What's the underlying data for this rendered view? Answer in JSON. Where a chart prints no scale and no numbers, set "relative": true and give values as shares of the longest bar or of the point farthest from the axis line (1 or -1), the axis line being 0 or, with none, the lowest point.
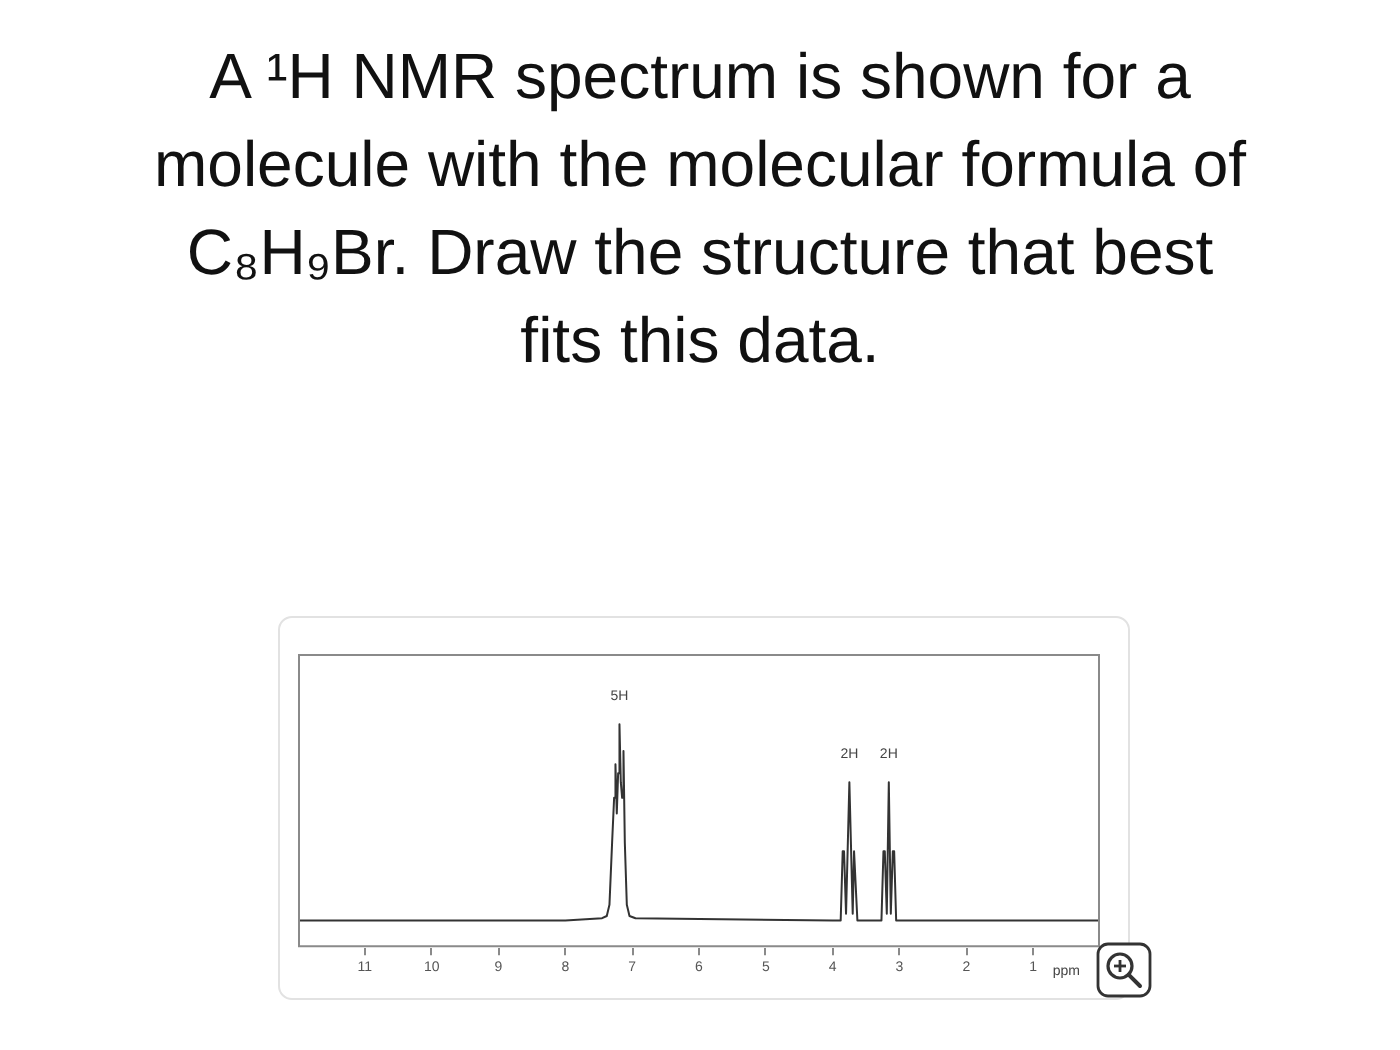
{
  "chart_data": {
    "type": "line",
    "title": "A ¹H NMR spectrum is shown for a molecule with the molecular formula of C₈H₉Br. Draw the structure that best fits this data.",
    "xlabel": "ppm",
    "relative": true,
    "color": "#333333",
    "marker": "none",
    "x": [
      12,
      8.0,
      7.45,
      7.38,
      7.34,
      7.3,
      7.27,
      7.25,
      7.23,
      7.21,
      7.19,
      7.17,
      7.15,
      7.13,
      7.11,
      7.08,
      7.04,
      6.95,
      4.0,
      3.88,
      3.85,
      3.83,
      3.8,
      3.75,
      3.7,
      3.68,
      3.66,
      3.63,
      3.27,
      3.24,
      3.22,
      3.19,
      3.16,
      3.13,
      3.1,
      3.08,
      3.05,
      0
    ],
    "values": [
      0.12,
      0.12,
      0.13,
      0.14,
      0.19,
      0.47,
      0.67,
      0.82,
      0.6,
      0.78,
      1,
      0.74,
      0.67,
      0.88,
      0.47,
      0.19,
      0.14,
      0.13,
      0.12,
      0.12,
      0.43,
      0.43,
      0.15,
      0.74,
      0.15,
      0.43,
      0.43,
      0.12,
      0.12,
      0.43,
      0.43,
      0.15,
      0.74,
      0.15,
      0.43,
      0.43,
      0.12,
      0.12
    ],
    "xlim": [
      12,
      0
    ],
    "xticks": [
      11,
      10,
      9,
      8,
      7,
      6,
      5,
      4,
      3,
      2,
      1
    ],
    "annotations": [
      {
        "text": "5H",
        "x": 7.19,
        "y": 1
      },
      {
        "text": "2H",
        "x": 3.75,
        "y": 0.74
      },
      {
        "text": "2H",
        "x": 3.16,
        "y": 0.74
      }
    ]
  }
}
